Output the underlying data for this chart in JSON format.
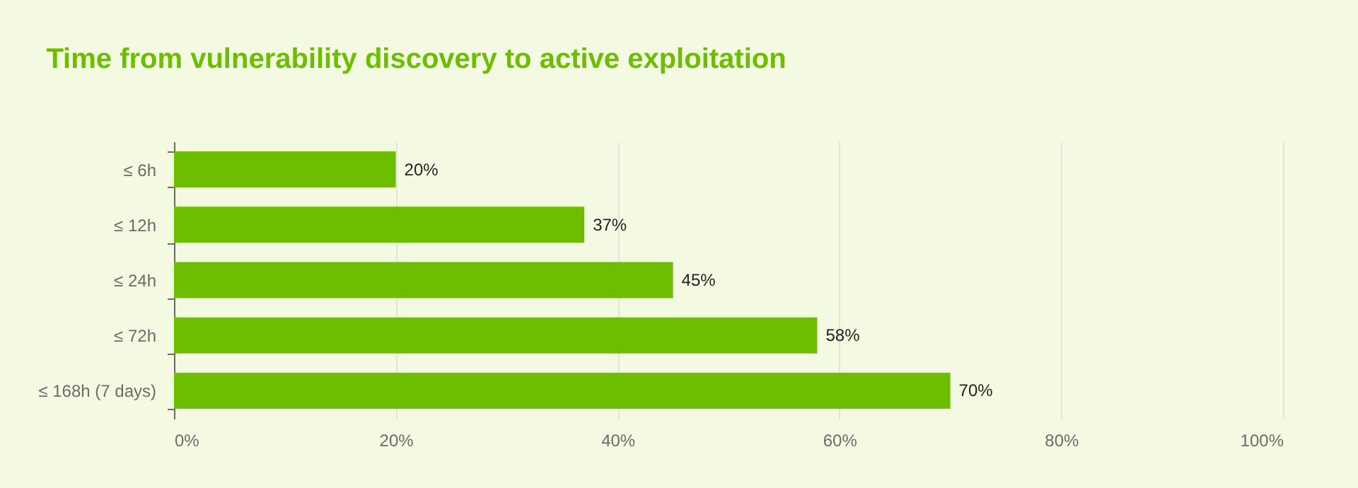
{
  "chart_data": {
    "type": "bar",
    "orientation": "horizontal",
    "title": "Time from vulnerability discovery to active exploitation",
    "categories": [
      "≤ 6h",
      "≤ 12h",
      "≤ 24h",
      "≤ 72h",
      "≤ 168h (7 days)"
    ],
    "values": [
      20,
      37,
      45,
      58,
      70
    ],
    "value_labels": [
      "20%",
      "37%",
      "45%",
      "58%",
      "70%"
    ],
    "color": "#6dbe00",
    "xlim": [
      0,
      100
    ],
    "xticks": [
      {
        "value": 0,
        "label": "0%"
      },
      {
        "value": 20,
        "label": "20%"
      },
      {
        "value": 40,
        "label": "40%"
      },
      {
        "value": 60,
        "label": "60%"
      },
      {
        "value": 80,
        "label": "80%"
      },
      {
        "value": 100,
        "label": "100%"
      }
    ],
    "grid": "x"
  }
}
